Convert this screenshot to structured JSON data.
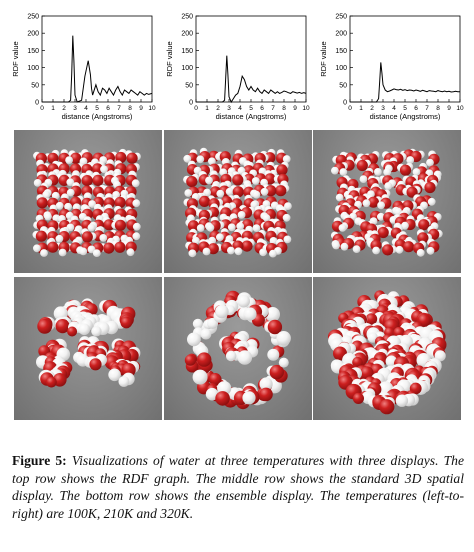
{
  "chart_data": [
    {
      "type": "line",
      "title": "",
      "xlabel": "distance (Angstroms)",
      "ylabel": "RDF value",
      "xlim": [
        0,
        10
      ],
      "ylim": [
        0,
        250
      ],
      "x_ticks": [
        0,
        1,
        2,
        3,
        4,
        5,
        6,
        7,
        8,
        9,
        10
      ],
      "y_ticks": [
        0,
        50,
        100,
        150,
        200,
        250
      ],
      "x": [
        0,
        2.4,
        2.6,
        2.7,
        2.8,
        2.9,
        3.0,
        3.2,
        3.6,
        3.9,
        4.2,
        4.4,
        4.5,
        4.6,
        4.7,
        4.9,
        5.1,
        5.3,
        5.5,
        5.7,
        5.9,
        6.1,
        6.3,
        6.5,
        6.7,
        6.9,
        7.1,
        7.3,
        7.5,
        7.7,
        7.9,
        8.1,
        8.3,
        8.5,
        8.7,
        8.9,
        9.1,
        9.3,
        9.5,
        9.7,
        10
      ],
      "values": [
        0,
        0,
        5,
        80,
        193,
        120,
        20,
        0,
        5,
        75,
        120,
        80,
        40,
        20,
        30,
        50,
        30,
        20,
        40,
        35,
        25,
        40,
        30,
        20,
        35,
        45,
        30,
        20,
        35,
        30,
        25,
        35,
        30,
        25,
        20,
        30,
        25,
        20,
        25,
        22,
        25
      ]
    },
    {
      "type": "line",
      "title": "",
      "xlabel": "distance (Angstroms)",
      "ylabel": "RDF value",
      "xlim": [
        0,
        10
      ],
      "ylim": [
        0,
        250
      ],
      "x_ticks": [
        0,
        1,
        2,
        3,
        4,
        5,
        6,
        7,
        8,
        9,
        10
      ],
      "y_ticks": [
        0,
        50,
        100,
        150,
        200,
        250
      ],
      "x": [
        0,
        2.4,
        2.6,
        2.7,
        2.8,
        2.9,
        3.0,
        3.2,
        3.4,
        3.6,
        3.8,
        4.0,
        4.2,
        4.4,
        4.6,
        4.8,
        5.0,
        5.2,
        5.4,
        5.6,
        5.8,
        6.0,
        6.2,
        6.4,
        6.6,
        6.8,
        7.0,
        7.2,
        7.4,
        7.6,
        7.8,
        8.0,
        8.2,
        8.4,
        8.6,
        8.8,
        9.0,
        9.2,
        9.4,
        9.6,
        9.8,
        10
      ],
      "values": [
        0,
        0,
        5,
        70,
        135,
        80,
        15,
        0,
        10,
        20,
        25,
        45,
        75,
        65,
        45,
        35,
        45,
        35,
        30,
        40,
        30,
        25,
        35,
        30,
        25,
        35,
        30,
        25,
        30,
        25,
        28,
        32,
        30,
        27,
        25,
        30,
        28,
        26,
        28,
        25,
        27,
        25
      ]
    },
    {
      "type": "line",
      "title": "",
      "xlabel": "distance (Angstroms)",
      "ylabel": "RDF value",
      "xlim": [
        0,
        10
      ],
      "ylim": [
        0,
        250
      ],
      "x_ticks": [
        0,
        1,
        2,
        3,
        4,
        5,
        6,
        7,
        8,
        9,
        10
      ],
      "y_ticks": [
        0,
        50,
        100,
        150,
        200,
        250
      ],
      "x": [
        0,
        2.4,
        2.6,
        2.7,
        2.8,
        2.9,
        3.0,
        3.2,
        3.4,
        3.6,
        3.8,
        4.0,
        4.2,
        4.4,
        4.6,
        4.8,
        5.0,
        5.2,
        5.4,
        5.6,
        5.8,
        6.0,
        6.2,
        6.4,
        6.6,
        6.8,
        7.0,
        7.2,
        7.4,
        7.6,
        7.8,
        8.0,
        8.2,
        8.4,
        8.6,
        8.8,
        9.0,
        9.2,
        9.4,
        9.6,
        9.8,
        10
      ],
      "values": [
        0,
        0,
        10,
        60,
        115,
        85,
        50,
        35,
        30,
        32,
        35,
        38,
        36,
        35,
        37,
        34,
        36,
        33,
        35,
        34,
        32,
        35,
        33,
        31,
        34,
        32,
        30,
        33,
        32,
        31,
        30,
        33,
        31,
        30,
        32,
        30,
        31,
        29,
        30,
        31,
        30,
        30
      ]
    }
  ],
  "colors": {
    "oxygen": "#cc1f1f",
    "oxygen_shade": "#8e1010",
    "hydrogen": "#f2f2f2",
    "hydrogen_shade": "#c9c9c9",
    "panel_background": "#7f7f7f"
  },
  "caption": {
    "label": "Figure 5:",
    "text": "Visualizations of water at three temperatures with three displays. The top row shows the RDF graph. The middle row shows the standard 3D spatial display. The bottom row shows the ensemble display. The temperatures (left-to-right) are 100K, 210K and 320K."
  }
}
